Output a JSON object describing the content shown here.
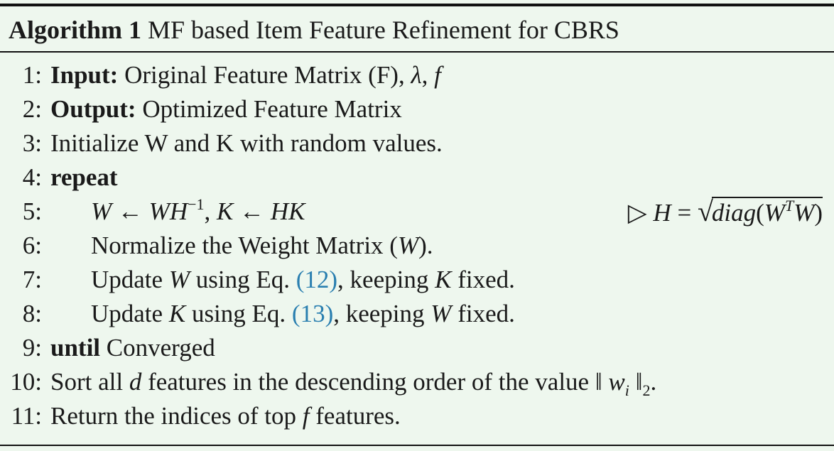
{
  "algorithm": {
    "label": "Algorithm 1",
    "title": "MF based Item Feature Refinement for CBRS",
    "steps": [
      {
        "num": "1:",
        "keyword": "Input:",
        "text": "Original Feature Matrix (F),",
        "sym1": "λ",
        "sep": ",",
        "sym2": "f"
      },
      {
        "num": "2:",
        "keyword": "Output:",
        "text": "Optimized Feature Matrix"
      },
      {
        "num": "3:",
        "text": "Initialize W and K with random values."
      },
      {
        "num": "4:",
        "keyword": "repeat"
      },
      {
        "num": "5:",
        "w1": "W",
        "arrow1": "←",
        "w2": "W",
        "h1": "H",
        "inv": "−1",
        "comma": ",",
        "k1": "K",
        "arrow2": "←",
        "h2": "H",
        "k2": "K",
        "comment": {
          "marker": "▷",
          "lhs": "H",
          "eq": "=",
          "radical": "√",
          "fn": "diag",
          "open": "(",
          "w1": "W",
          "sup": "T",
          "w2": "W",
          "close": ")"
        }
      },
      {
        "num": "6:",
        "text": "Normalize the Weight Matrix (",
        "sym": "W",
        "end": ")."
      },
      {
        "num": "7:",
        "pre": "Update",
        "sym1": "W",
        "mid": "using Eq.",
        "ref": "(12)",
        "post": ", keeping",
        "sym2": "K",
        "end": "fixed."
      },
      {
        "num": "8:",
        "pre": "Update",
        "sym1": "K",
        "mid": "using Eq.",
        "ref": "(13)",
        "post": ", keeping",
        "sym2": "W",
        "end": "fixed."
      },
      {
        "num": "9:",
        "keyword": "until",
        "text": "Converged"
      },
      {
        "num": "10:",
        "pre": "Sort all",
        "sym": "d",
        "post": "features in the descending order of the value ‖",
        "w": "w",
        "sub": "i",
        "norm": "‖",
        "norm_sub": "2",
        "end": "."
      },
      {
        "num": "11:",
        "pre": "Return the indices of top",
        "sym": "f",
        "post": "features."
      }
    ]
  }
}
